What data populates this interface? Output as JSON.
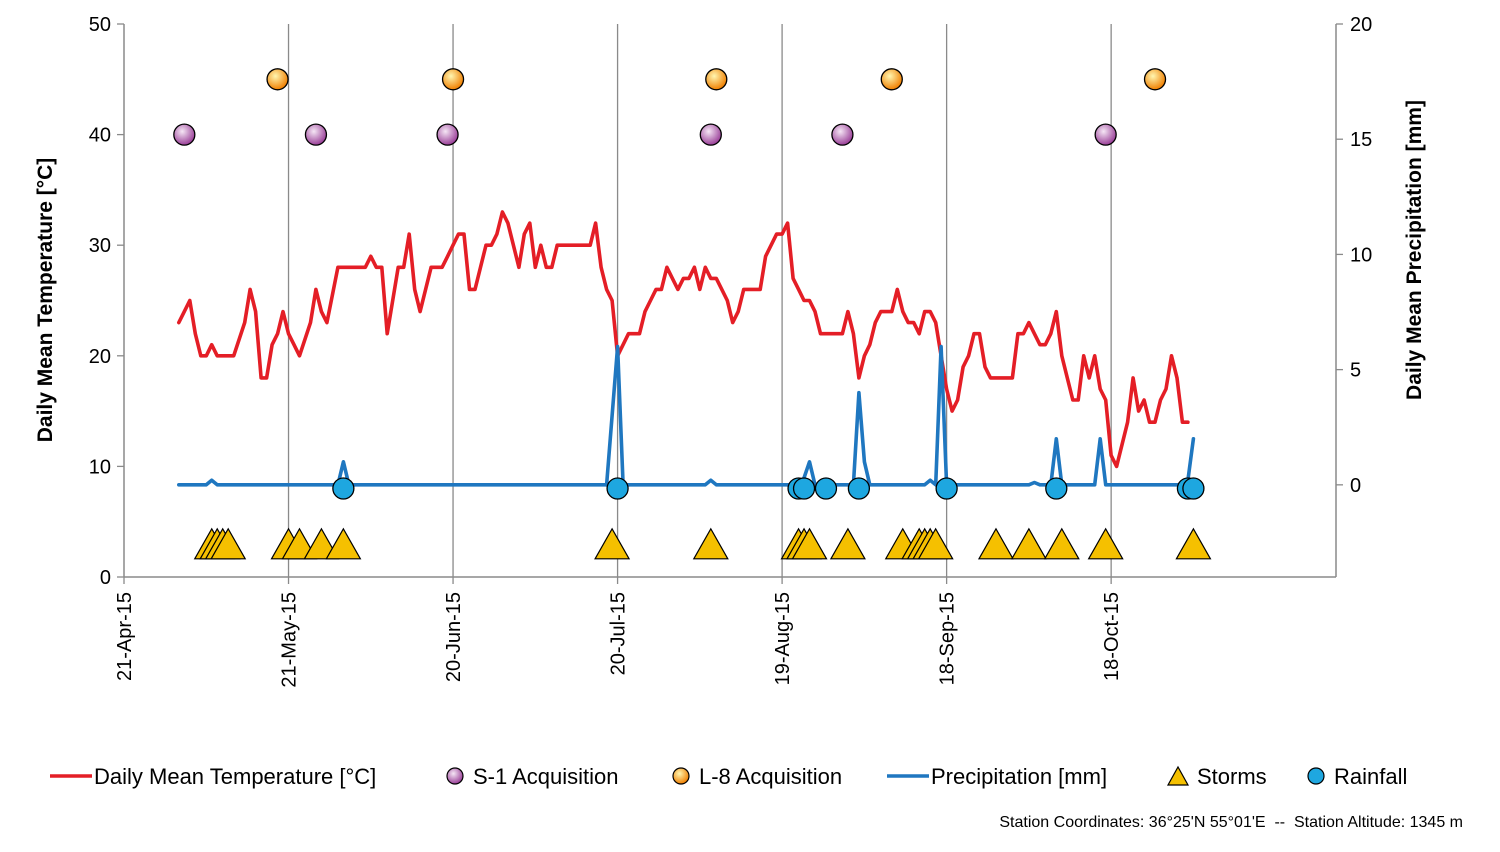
{
  "chart_data": {
    "type": "line",
    "xlabel": "",
    "ylabel": "Daily Mean Temperature [°C]",
    "y2label": "Daily Mean Precipitation [mm]",
    "ylim": [
      0,
      50
    ],
    "y2lim": [
      -4,
      20
    ],
    "yticks": [
      "0",
      "10",
      "20",
      "30",
      "40",
      "50"
    ],
    "y2ticks": [
      "0",
      "5",
      "10",
      "15",
      "20"
    ],
    "x_start": "2015-04-21",
    "x_end": "2015-11-28",
    "xticks": [
      {
        "date": "2015-04-21",
        "label": "21-Apr-15"
      },
      {
        "date": "2015-05-21",
        "label": "21-May-15"
      },
      {
        "date": "2015-06-20",
        "label": "20-Jun-15"
      },
      {
        "date": "2015-07-20",
        "label": "20-Jul-15"
      },
      {
        "date": "2015-08-19",
        "label": "19-Aug-15"
      },
      {
        "date": "2015-09-18",
        "label": "18-Sep-15"
      },
      {
        "date": "2015-10-18",
        "label": "18-Oct-15"
      }
    ],
    "grid": "vertical",
    "legend_position": "bottom",
    "series": [
      {
        "name": "Daily Mean Temperature [°C]",
        "kind": "line",
        "axis": "left",
        "color": "#e41e26",
        "points": [
          [
            "2015-05-01",
            23
          ],
          [
            "2015-05-02",
            24
          ],
          [
            "2015-05-03",
            25
          ],
          [
            "2015-05-04",
            22
          ],
          [
            "2015-05-05",
            20
          ],
          [
            "2015-05-06",
            20
          ],
          [
            "2015-05-07",
            21
          ],
          [
            "2015-05-08",
            20
          ],
          [
            "2015-05-10",
            20
          ],
          [
            "2015-05-11",
            20
          ],
          [
            "2015-05-13",
            23
          ],
          [
            "2015-05-14",
            26
          ],
          [
            "2015-05-15",
            24
          ],
          [
            "2015-05-16",
            18
          ],
          [
            "2015-05-17",
            18
          ],
          [
            "2015-05-18",
            21
          ],
          [
            "2015-05-19",
            22
          ],
          [
            "2015-05-20",
            24
          ],
          [
            "2015-05-21",
            22
          ],
          [
            "2015-05-22",
            21
          ],
          [
            "2015-05-23",
            20
          ],
          [
            "2015-05-25",
            23
          ],
          [
            "2015-05-26",
            26
          ],
          [
            "2015-05-27",
            24
          ],
          [
            "2015-05-28",
            23
          ],
          [
            "2015-05-30",
            28
          ],
          [
            "2015-05-31",
            28
          ],
          [
            "2015-06-01",
            28
          ],
          [
            "2015-06-04",
            28
          ],
          [
            "2015-06-05",
            29
          ],
          [
            "2015-06-06",
            28
          ],
          [
            "2015-06-07",
            28
          ],
          [
            "2015-06-08",
            22
          ],
          [
            "2015-06-09",
            25
          ],
          [
            "2015-06-10",
            28
          ],
          [
            "2015-06-11",
            28
          ],
          [
            "2015-06-12",
            31
          ],
          [
            "2015-06-13",
            26
          ],
          [
            "2015-06-14",
            24
          ],
          [
            "2015-06-15",
            26
          ],
          [
            "2015-06-16",
            28
          ],
          [
            "2015-06-18",
            28
          ],
          [
            "2015-06-19",
            29
          ],
          [
            "2015-06-20",
            30
          ],
          [
            "2015-06-21",
            31
          ],
          [
            "2015-06-22",
            31
          ],
          [
            "2015-06-23",
            26
          ],
          [
            "2015-06-24",
            26
          ],
          [
            "2015-06-25",
            28
          ],
          [
            "2015-06-26",
            30
          ],
          [
            "2015-06-27",
            30
          ],
          [
            "2015-06-28",
            31
          ],
          [
            "2015-06-29",
            33
          ],
          [
            "2015-06-30",
            32
          ],
          [
            "2015-07-01",
            30
          ],
          [
            "2015-07-02",
            28
          ],
          [
            "2015-07-03",
            31
          ],
          [
            "2015-07-04",
            32
          ],
          [
            "2015-07-05",
            28
          ],
          [
            "2015-07-06",
            30
          ],
          [
            "2015-07-07",
            28
          ],
          [
            "2015-07-08",
            28
          ],
          [
            "2015-07-09",
            30
          ],
          [
            "2015-07-10",
            30
          ],
          [
            "2015-07-14",
            30
          ],
          [
            "2015-07-15",
            30
          ],
          [
            "2015-07-16",
            32
          ],
          [
            "2015-07-17",
            28
          ],
          [
            "2015-07-18",
            26
          ],
          [
            "2015-07-19",
            25
          ],
          [
            "2015-07-20",
            20
          ],
          [
            "2015-07-21",
            21
          ],
          [
            "2015-07-22",
            22
          ],
          [
            "2015-07-24",
            22
          ],
          [
            "2015-07-25",
            24
          ],
          [
            "2015-07-26",
            25
          ],
          [
            "2015-07-27",
            26
          ],
          [
            "2015-07-28",
            26
          ],
          [
            "2015-07-29",
            28
          ],
          [
            "2015-07-30",
            27
          ],
          [
            "2015-07-31",
            26
          ],
          [
            "2015-08-01",
            27
          ],
          [
            "2015-08-02",
            27
          ],
          [
            "2015-08-03",
            28
          ],
          [
            "2015-08-04",
            26
          ],
          [
            "2015-08-05",
            28
          ],
          [
            "2015-08-06",
            27
          ],
          [
            "2015-08-07",
            27
          ],
          [
            "2015-08-08",
            26
          ],
          [
            "2015-08-09",
            25
          ],
          [
            "2015-08-10",
            23
          ],
          [
            "2015-08-11",
            24
          ],
          [
            "2015-08-12",
            26
          ],
          [
            "2015-08-13",
            26
          ],
          [
            "2015-08-14",
            26
          ],
          [
            "2015-08-15",
            26
          ],
          [
            "2015-08-16",
            29
          ],
          [
            "2015-08-17",
            30
          ],
          [
            "2015-08-18",
            31
          ],
          [
            "2015-08-19",
            31
          ],
          [
            "2015-08-20",
            32
          ],
          [
            "2015-08-21",
            27
          ],
          [
            "2015-08-22",
            26
          ],
          [
            "2015-08-23",
            25
          ],
          [
            "2015-08-24",
            25
          ],
          [
            "2015-08-25",
            24
          ],
          [
            "2015-08-26",
            22
          ],
          [
            "2015-08-27",
            22
          ],
          [
            "2015-08-30",
            22
          ],
          [
            "2015-08-31",
            24
          ],
          [
            "2015-09-01",
            22
          ],
          [
            "2015-09-02",
            18
          ],
          [
            "2015-09-03",
            20
          ],
          [
            "2015-09-04",
            21
          ],
          [
            "2015-09-05",
            23
          ],
          [
            "2015-09-06",
            24
          ],
          [
            "2015-09-07",
            24
          ],
          [
            "2015-09-08",
            24
          ],
          [
            "2015-09-09",
            26
          ],
          [
            "2015-09-10",
            24
          ],
          [
            "2015-09-11",
            23
          ],
          [
            "2015-09-12",
            23
          ],
          [
            "2015-09-13",
            22
          ],
          [
            "2015-09-14",
            24
          ],
          [
            "2015-09-15",
            24
          ],
          [
            "2015-09-16",
            23
          ],
          [
            "2015-09-17",
            20
          ],
          [
            "2015-09-18",
            17
          ],
          [
            "2015-09-19",
            15
          ],
          [
            "2015-09-20",
            16
          ],
          [
            "2015-09-21",
            19
          ],
          [
            "2015-09-22",
            20
          ],
          [
            "2015-09-23",
            22
          ],
          [
            "2015-09-24",
            22
          ],
          [
            "2015-09-25",
            19
          ],
          [
            "2015-09-26",
            18
          ],
          [
            "2015-09-27",
            18
          ],
          [
            "2015-09-28",
            18
          ],
          [
            "2015-09-30",
            18
          ],
          [
            "2015-10-01",
            22
          ],
          [
            "2015-10-02",
            22
          ],
          [
            "2015-10-03",
            23
          ],
          [
            "2015-10-04",
            22
          ],
          [
            "2015-10-05",
            21
          ],
          [
            "2015-10-06",
            21
          ],
          [
            "2015-10-07",
            22
          ],
          [
            "2015-10-08",
            24
          ],
          [
            "2015-10-09",
            20
          ],
          [
            "2015-10-10",
            18
          ],
          [
            "2015-10-11",
            16
          ],
          [
            "2015-10-12",
            16
          ],
          [
            "2015-10-13",
            20
          ],
          [
            "2015-10-14",
            18
          ],
          [
            "2015-10-15",
            20
          ],
          [
            "2015-10-16",
            17
          ],
          [
            "2015-10-17",
            16
          ],
          [
            "2015-10-18",
            11
          ],
          [
            "2015-10-19",
            10
          ],
          [
            "2015-10-20",
            12
          ],
          [
            "2015-10-21",
            14
          ],
          [
            "2015-10-22",
            18
          ],
          [
            "2015-10-23",
            15
          ],
          [
            "2015-10-24",
            16
          ],
          [
            "2015-10-25",
            14
          ],
          [
            "2015-10-26",
            14
          ],
          [
            "2015-10-27",
            16
          ],
          [
            "2015-10-28",
            17
          ],
          [
            "2015-10-29",
            20
          ],
          [
            "2015-10-30",
            18
          ],
          [
            "2015-10-31",
            14
          ],
          [
            "2015-11-01",
            14
          ]
        ]
      },
      {
        "name": "S-1 Acquisition",
        "kind": "marker",
        "marker": "circle",
        "axis": "left",
        "color": "#a0419f",
        "points": [
          [
            "2015-05-02",
            40
          ],
          [
            "2015-05-26",
            40
          ],
          [
            "2015-06-19",
            40
          ],
          [
            "2015-08-06",
            40
          ],
          [
            "2015-08-30",
            40
          ],
          [
            "2015-10-17",
            40
          ]
        ]
      },
      {
        "name": "L-8 Acquisition",
        "kind": "marker",
        "marker": "circle",
        "axis": "left",
        "color": "#f08a00",
        "points": [
          [
            "2015-05-19",
            45
          ],
          [
            "2015-06-20",
            45
          ],
          [
            "2015-08-07",
            45
          ],
          [
            "2015-09-08",
            45
          ],
          [
            "2015-10-26",
            45
          ]
        ]
      },
      {
        "name": "Precipitation [mm]",
        "kind": "line",
        "axis": "right",
        "color": "#1f77c0",
        "points": [
          [
            "2015-05-01",
            0
          ],
          [
            "2015-05-06",
            0
          ],
          [
            "2015-05-07",
            0.2
          ],
          [
            "2015-05-08",
            0
          ],
          [
            "2015-05-30",
            0
          ],
          [
            "2015-05-31",
            1
          ],
          [
            "2015-06-01",
            0
          ],
          [
            "2015-07-18",
            0
          ],
          [
            "2015-07-20",
            6
          ],
          [
            "2015-07-21",
            0
          ],
          [
            "2015-08-05",
            0
          ],
          [
            "2015-08-06",
            0.2
          ],
          [
            "2015-08-07",
            0
          ],
          [
            "2015-08-22",
            0
          ],
          [
            "2015-08-23",
            0.3
          ],
          [
            "2015-08-24",
            1
          ],
          [
            "2015-08-25",
            0
          ],
          [
            "2015-09-01",
            0
          ],
          [
            "2015-09-02",
            4
          ],
          [
            "2015-09-03",
            1
          ],
          [
            "2015-09-04",
            0
          ],
          [
            "2015-09-14",
            0
          ],
          [
            "2015-09-15",
            0.2
          ],
          [
            "2015-09-16",
            0
          ],
          [
            "2015-09-17",
            6
          ],
          [
            "2015-09-18",
            0
          ],
          [
            "2015-10-03",
            0
          ],
          [
            "2015-10-04",
            0.1
          ],
          [
            "2015-10-05",
            0
          ],
          [
            "2015-10-07",
            0
          ],
          [
            "2015-10-08",
            2
          ],
          [
            "2015-10-09",
            0
          ],
          [
            "2015-10-15",
            0
          ],
          [
            "2015-10-16",
            2
          ],
          [
            "2015-10-17",
            0
          ],
          [
            "2015-10-31",
            0
          ],
          [
            "2015-11-01",
            0.2
          ],
          [
            "2015-11-02",
            2
          ]
        ]
      },
      {
        "name": "Storms",
        "kind": "marker",
        "marker": "triangle",
        "axis": "left",
        "color": "#f5c000",
        "points": [
          [
            "2015-05-07",
            3
          ],
          [
            "2015-05-08",
            3
          ],
          [
            "2015-05-09",
            3
          ],
          [
            "2015-05-10",
            3
          ],
          [
            "2015-05-21",
            3
          ],
          [
            "2015-05-23",
            3
          ],
          [
            "2015-05-27",
            3
          ],
          [
            "2015-05-31",
            3
          ],
          [
            "2015-07-19",
            3
          ],
          [
            "2015-08-06",
            3
          ],
          [
            "2015-08-22",
            3
          ],
          [
            "2015-08-23",
            3
          ],
          [
            "2015-08-24",
            3
          ],
          [
            "2015-08-31",
            3
          ],
          [
            "2015-09-10",
            3
          ],
          [
            "2015-09-13",
            3
          ],
          [
            "2015-09-14",
            3
          ],
          [
            "2015-09-15",
            3
          ],
          [
            "2015-09-16",
            3
          ],
          [
            "2015-09-27",
            3
          ],
          [
            "2015-10-03",
            3
          ],
          [
            "2015-10-09",
            3
          ],
          [
            "2015-10-17",
            3
          ],
          [
            "2015-11-02",
            3
          ]
        ]
      },
      {
        "name": "Rainfall",
        "kind": "marker",
        "marker": "circle",
        "axis": "left",
        "color": "#1ea7e0",
        "points": [
          [
            "2015-05-31",
            8
          ],
          [
            "2015-07-20",
            8
          ],
          [
            "2015-08-22",
            8
          ],
          [
            "2015-08-23",
            8
          ],
          [
            "2015-08-27",
            8
          ],
          [
            "2015-09-02",
            8
          ],
          [
            "2015-09-18",
            8
          ],
          [
            "2015-10-08",
            8
          ],
          [
            "2015-11-01",
            8
          ],
          [
            "2015-11-02",
            8
          ]
        ]
      }
    ]
  },
  "legend": [
    {
      "label": "Daily Mean Temperature [°C]",
      "symbol": "line",
      "color": "#e41e26"
    },
    {
      "label": "S-1 Acquisition",
      "symbol": "circle",
      "color": "#a0419f"
    },
    {
      "label": "L-8 Acquisition",
      "symbol": "circle",
      "color": "#f08a00"
    },
    {
      "label": "Precipitation [mm]",
      "symbol": "line",
      "color": "#1f77c0"
    },
    {
      "label": "Storms",
      "symbol": "triangle",
      "color": "#f5c000"
    },
    {
      "label": "Rainfall",
      "symbol": "circle",
      "color": "#1ea7e0"
    }
  ],
  "footnote": "Station Coordinates: 36°25'N 55°01'E  --  Station Altitude: 1345 m"
}
